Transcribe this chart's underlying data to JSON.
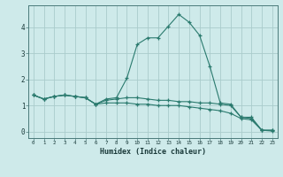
{
  "xlabel": "Humidex (Indice chaleur)",
  "background_color": "#ceeaea",
  "grid_color": "#aacccc",
  "line_color": "#2a7a6e",
  "x_values": [
    0,
    1,
    2,
    3,
    4,
    5,
    6,
    7,
    8,
    9,
    10,
    11,
    12,
    13,
    14,
    15,
    16,
    17,
    18,
    19,
    20,
    21,
    22,
    23
  ],
  "series1": [
    1.4,
    1.25,
    1.35,
    1.4,
    1.35,
    1.3,
    1.05,
    1.25,
    1.3,
    2.05,
    3.35,
    3.6,
    3.6,
    4.05,
    4.5,
    4.2,
    3.7,
    2.5,
    1.1,
    1.05,
    0.55,
    0.55,
    0.05,
    0.05
  ],
  "series2": [
    1.4,
    1.25,
    1.35,
    1.4,
    1.35,
    1.3,
    1.05,
    1.2,
    1.25,
    1.3,
    1.3,
    1.25,
    1.2,
    1.2,
    1.15,
    1.15,
    1.1,
    1.1,
    1.05,
    1.0,
    0.55,
    0.5,
    0.05,
    0.05
  ],
  "series3": [
    1.4,
    1.25,
    1.35,
    1.4,
    1.35,
    1.3,
    1.05,
    1.1,
    1.1,
    1.1,
    1.05,
    1.05,
    1.0,
    1.0,
    1.0,
    0.95,
    0.9,
    0.85,
    0.8,
    0.7,
    0.5,
    0.45,
    0.05,
    0.02
  ],
  "ylim": [
    -0.25,
    4.85
  ],
  "xlim": [
    -0.5,
    23.5
  ],
  "yticks": [
    0,
    1,
    2,
    3,
    4
  ],
  "xticks": [
    0,
    1,
    2,
    3,
    4,
    5,
    6,
    7,
    8,
    9,
    10,
    11,
    12,
    13,
    14,
    15,
    16,
    17,
    18,
    19,
    20,
    21,
    22,
    23
  ]
}
